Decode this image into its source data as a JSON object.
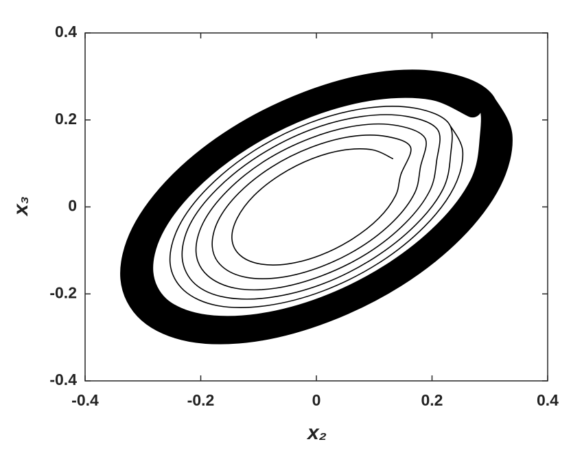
{
  "chart_data": {
    "type": "line",
    "xlabel": "x₂",
    "ylabel": "x₃",
    "xlim": [
      -0.4,
      0.4
    ],
    "ylim": [
      -0.4,
      0.4
    ],
    "xticks": [
      -0.4,
      -0.2,
      0,
      0.2,
      0.4
    ],
    "yticks": [
      -0.4,
      -0.2,
      0,
      0.2,
      0.4
    ],
    "grid": false,
    "series": [
      {
        "color": "#000000",
        "x": [
          0.132,
          0.098,
          0.049,
          -0.007,
          -0.062,
          -0.108,
          -0.137,
          -0.146,
          -0.132,
          -0.098,
          -0.049,
          0.007,
          0.062,
          0.108,
          0.137,
          0.146,
          0.163,
          0.121,
          0.061,
          -0.009,
          -0.077,
          -0.134,
          -0.17,
          -0.18,
          -0.163,
          -0.121,
          -0.061,
          0.009,
          0.077,
          0.134,
          0.17,
          0.18,
          0.188,
          0.14,
          0.071,
          -0.01,
          -0.089,
          -0.154,
          -0.196,
          -0.208,
          -0.188,
          -0.14,
          -0.071,
          0.01,
          0.089,
          0.154,
          0.196,
          0.208,
          0.21,
          0.157,
          0.079,
          -0.011,
          -0.099,
          -0.172,
          -0.219,
          -0.232,
          -0.21,
          -0.157,
          -0.079,
          0.011,
          0.099,
          0.172,
          0.219,
          0.232,
          0.229,
          0.171,
          0.086,
          -0.012,
          -0.108,
          -0.187,
          -0.238,
          -0.253,
          -0.229,
          -0.171,
          -0.086,
          0.012,
          0.108,
          0.187,
          0.238,
          0.253,
          0.229
        ],
        "values": [
          0.111,
          0.131,
          0.131,
          0.111,
          0.074,
          0.026,
          -0.026,
          -0.074,
          -0.111,
          -0.131,
          -0.131,
          -0.111,
          -0.074,
          -0.026,
          0.026,
          0.074,
          0.137,
          0.162,
          0.162,
          0.137,
          0.092,
          0.032,
          -0.032,
          -0.092,
          -0.137,
          -0.162,
          -0.162,
          -0.137,
          -0.092,
          -0.032,
          0.032,
          0.092,
          0.158,
          0.187,
          0.187,
          0.158,
          0.106,
          0.037,
          -0.037,
          -0.106,
          -0.158,
          -0.187,
          -0.187,
          -0.158,
          -0.106,
          -0.037,
          0.037,
          0.106,
          0.177,
          0.208,
          0.208,
          0.177,
          0.118,
          0.041,
          -0.041,
          -0.118,
          -0.177,
          -0.208,
          -0.208,
          -0.177,
          -0.118,
          -0.041,
          0.041,
          0.118,
          0.192,
          0.227,
          0.227,
          0.193,
          0.129,
          0.045,
          -0.045,
          -0.129,
          -0.192,
          -0.227,
          -0.227,
          -0.193,
          -0.129,
          -0.045,
          0.045,
          0.129,
          0.192
        ]
      },
      {
        "color": "#000000",
        "x": [
          0.27,
          0.201,
          0.101,
          -0.014,
          -0.127,
          -0.221,
          -0.281,
          -0.298,
          -0.27,
          -0.201,
          -0.101,
          0.014,
          0.127,
          0.221,
          0.281,
          0.298,
          0.292,
          0.217,
          0.109,
          -0.015,
          -0.138,
          -0.239,
          -0.304,
          -0.323,
          -0.292,
          -0.217,
          -0.109,
          0.015,
          0.138,
          0.239,
          0.304,
          0.323,
          0.292
        ],
        "values": [
          0.227,
          0.267,
          0.267,
          0.227,
          0.152,
          0.053,
          -0.053,
          -0.151,
          -0.227,
          -0.267,
          -0.267,
          -0.227,
          -0.152,
          -0.053,
          0.053,
          0.151,
          0.245,
          0.289,
          0.289,
          0.245,
          0.164,
          0.058,
          -0.057,
          -0.164,
          -0.245,
          -0.289,
          -0.289,
          -0.245,
          -0.164,
          -0.058,
          0.057,
          0.164,
          0.245
        ]
      }
    ]
  }
}
